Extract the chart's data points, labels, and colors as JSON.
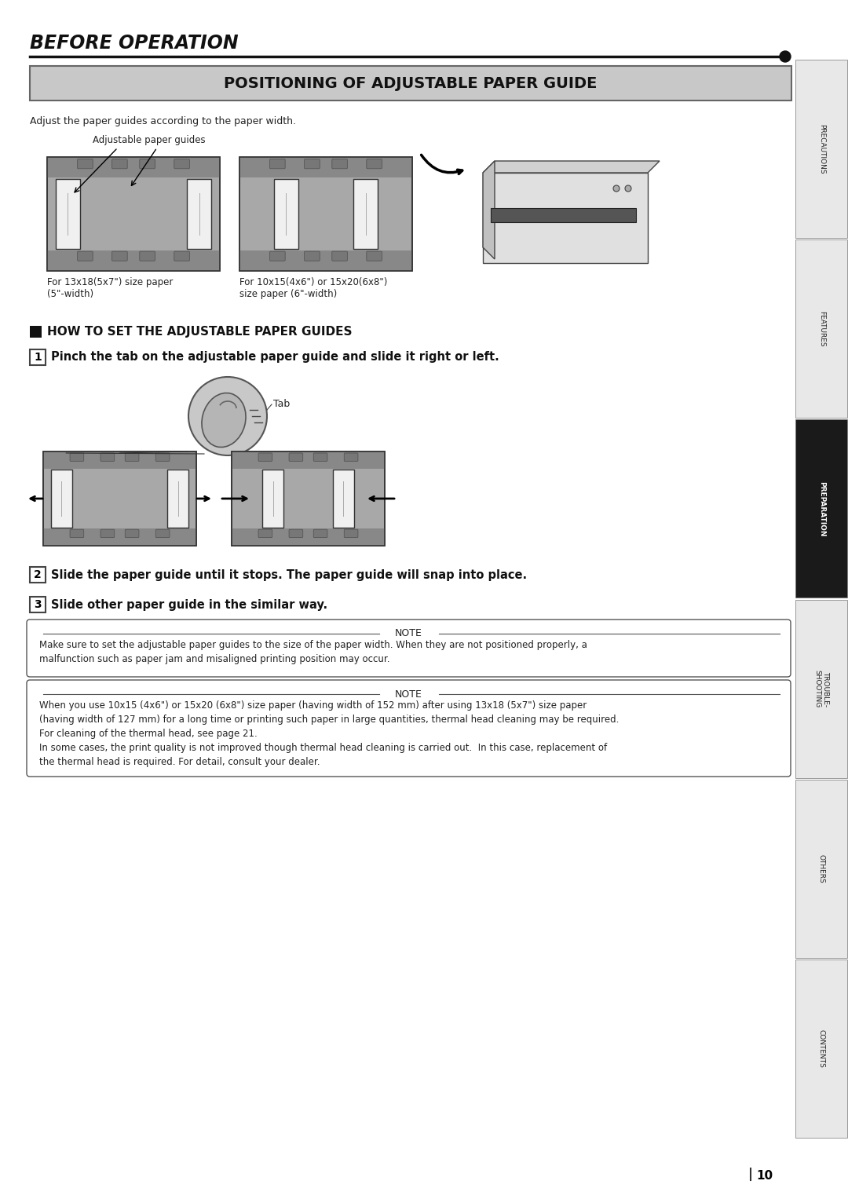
{
  "title_main": "BEFORE OPERATION",
  "title_section": "POSITIONING OF ADJUSTABLE PAPER GUIDE",
  "subtitle_adjust": "Adjust the paper guides according to the paper width.",
  "label_adj_guides": "Adjustable paper guides",
  "caption_1": "For 13x18(5x7\") size paper\n(5\"-width)",
  "caption_2": "For 10x15(4x6\") or 15x20(6x8\")\nsize paper (6\"-width)",
  "section_how": "HOW TO SET THE ADJUSTABLE PAPER GUIDES",
  "step1_text": "Pinch the tab on the adjustable paper guide and slide it right or left.",
  "step2_text": "Slide the paper guide until it stops. The paper guide will snap into place.",
  "step3_text": "Slide other paper guide in the similar way.",
  "tab_label": "Tab",
  "note1_title": "NOTE",
  "note1_text": "Make sure to set the adjustable paper guides to the size of the paper width. When they are not positioned properly, a\nmalfunction such as paper jam and misaligned printing position may occur.",
  "note2_title": "NOTE",
  "note2_text": "When you use 10x15 (4x6\") or 15x20 (6x8\") size paper (having width of 152 mm) after using 13x18 (5x7\") size paper\n(having width of 127 mm) for a long time or printing such paper in large quantities, thermal head cleaning may be required.\nFor cleaning of the thermal head, see page 21.\nIn some cases, the print quality is not improved though thermal head cleaning is carried out.  In this case, replacement of\nthe thermal head is required. For detail, consult your dealer.",
  "page_num": "10",
  "sidebar_labels": [
    "PRECAUTIONS",
    "FEATURES",
    "PREPARATION",
    "TROUBLE-\nSHOOTING",
    "OTHERS",
    "CONTENTS"
  ],
  "sidebar_active": 2,
  "bg_color": "#ffffff",
  "sidebar_bg": "#e8e8e8",
  "sidebar_active_bg": "#1a1a1a",
  "section_header_bg": "#c8c8c8",
  "note_border": "#555555"
}
